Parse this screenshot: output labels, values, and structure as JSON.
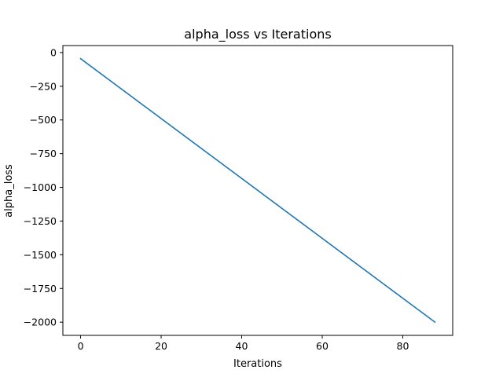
{
  "chart_data": {
    "type": "line",
    "title": "alpha_loss vs Iterations",
    "xlabel": "Iterations",
    "ylabel": "alpha_loss",
    "xlim": [
      -4.4,
      92.4
    ],
    "ylim": [
      -2098,
      52
    ],
    "x_ticks": [
      0,
      20,
      40,
      60,
      80
    ],
    "x_tick_labels": [
      "0",
      "20",
      "40",
      "60",
      "80"
    ],
    "y_ticks": [
      0,
      -250,
      -500,
      -750,
      -1000,
      -1250,
      -1500,
      -1750,
      -2000
    ],
    "y_tick_labels": [
      "0",
      "−250",
      "−500",
      "−750",
      "−1000",
      "−1250",
      "−1500",
      "−1750",
      "−2000"
    ],
    "grid": false,
    "legend": "none",
    "series": [
      {
        "color": "#1f77b4",
        "x": [
          0,
          88
        ],
        "y": [
          -45,
          -2000
        ]
      }
    ]
  }
}
